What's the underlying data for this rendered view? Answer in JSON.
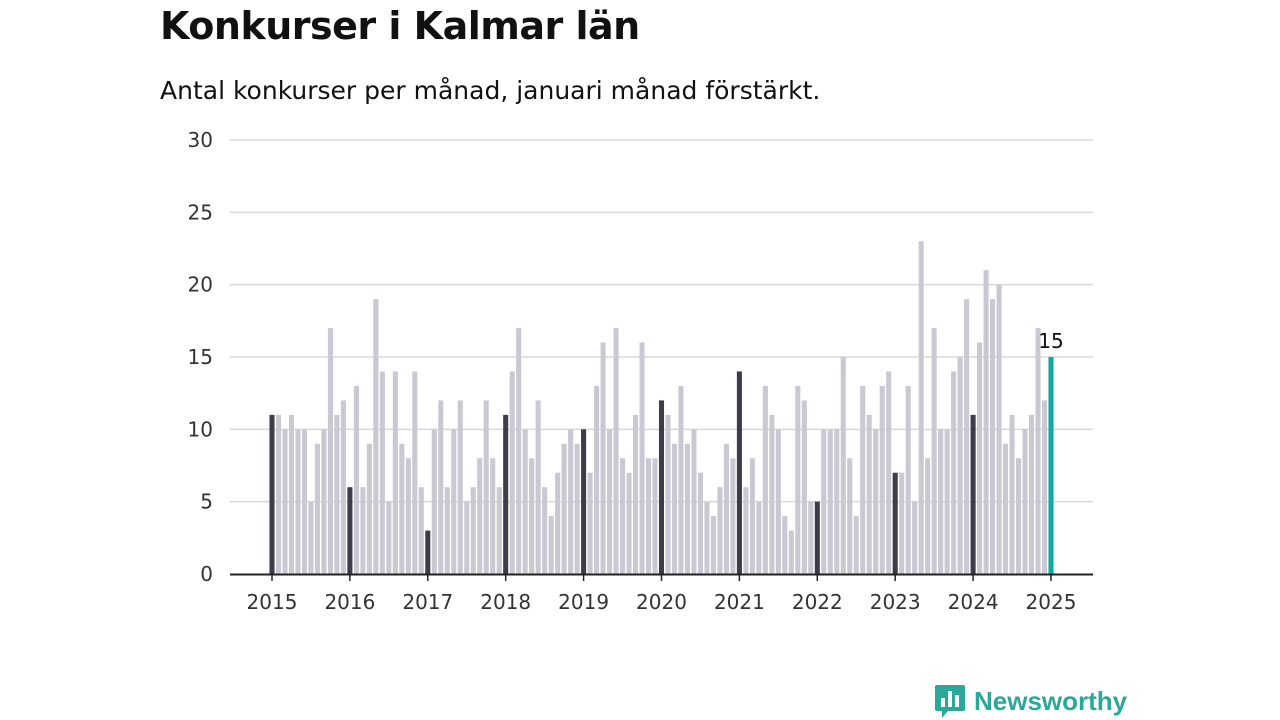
{
  "colors": {
    "bar": "#c9c8d3",
    "bar_january": "#3d3c4a",
    "bar_highlight": "#12a89a",
    "grid": "#d9d9d9",
    "axis": "#222222",
    "brand": "#2aa89a"
  },
  "brand": {
    "name": "Newsworthy",
    "icon": "newsworthy-logo-icon"
  },
  "chart_data": {
    "type": "bar",
    "title": "Konkurser i Kalmar län",
    "subtitle": "Antal konkurser per månad, januari månad förstärkt.",
    "xlabel": "",
    "ylabel": "",
    "ylim": [
      0,
      30
    ],
    "yticks": [
      0,
      5,
      10,
      15,
      20,
      25,
      30
    ],
    "grid": true,
    "legend": "none",
    "x_start": "2015-01",
    "x_end": "2025-01",
    "xtick_labels": [
      "2015",
      "2016",
      "2017",
      "2018",
      "2019",
      "2020",
      "2021",
      "2022",
      "2023",
      "2024",
      "2025"
    ],
    "highlight_label": "15",
    "series": [
      {
        "values": [
          11,
          11,
          10,
          11,
          10,
          10,
          5,
          9,
          10,
          17,
          11,
          12,
          6,
          13,
          6,
          9,
          19,
          14,
          5,
          14,
          9,
          8,
          14,
          6,
          3,
          10,
          12,
          6,
          10,
          12,
          5,
          6,
          8,
          12,
          8,
          6,
          11,
          14,
          17,
          10,
          8,
          12,
          6,
          4,
          7,
          9,
          10,
          9,
          10,
          7,
          13,
          16,
          10,
          17,
          8,
          7,
          11,
          16,
          8,
          8,
          12,
          11,
          9,
          13,
          9,
          10,
          7,
          5,
          4,
          6,
          9,
          8,
          14,
          6,
          8,
          5,
          13,
          11,
          10,
          4,
          3,
          13,
          12,
          5,
          5,
          10,
          10,
          10,
          15,
          8,
          4,
          13,
          11,
          10,
          13,
          14,
          7,
          7,
          13,
          5,
          23,
          8,
          17,
          10,
          10,
          14,
          15,
          19,
          11,
          16,
          21,
          19,
          20,
          9,
          11,
          8,
          10,
          11,
          17,
          12,
          15
        ]
      }
    ]
  }
}
